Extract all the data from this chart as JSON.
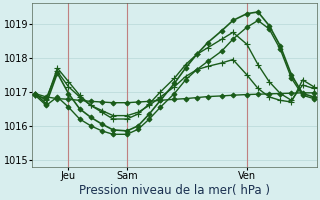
{
  "background_color": "#d8eeee",
  "grid_color": "#b8d8d8",
  "line_color": "#1a5c1a",
  "marker_color": "#1a5c1a",
  "title": "Pression niveau de la mer( hPa )",
  "ylim": [
    1014.8,
    1019.6
  ],
  "yticks": [
    1015,
    1016,
    1017,
    1018,
    1019
  ],
  "xtick_positions": [
    0.12,
    0.33,
    0.76
  ],
  "xtick_labels": [
    "Jeu",
    "Sam",
    "Ven"
  ],
  "vlines": [
    0.12,
    0.33,
    0.76
  ],
  "vline_color": "#c08080",
  "series": [
    {
      "x": [
        0.0,
        0.04,
        0.08,
        0.12,
        0.16,
        0.2,
        0.24,
        0.28,
        0.33,
        0.37,
        0.41,
        0.45,
        0.5,
        0.54,
        0.58,
        0.62,
        0.67,
        0.71,
        0.76,
        0.8,
        0.84,
        0.88,
        0.92,
        0.96,
        1.0
      ],
      "y": [
        1016.95,
        1016.85,
        1016.8,
        1016.78,
        1016.75,
        1016.72,
        1016.7,
        1016.68,
        1016.68,
        1016.7,
        1016.72,
        1016.75,
        1016.78,
        1016.8,
        1016.83,
        1016.86,
        1016.88,
        1016.9,
        1016.92,
        1016.93,
        1016.94,
        1016.95,
        1016.96,
        1016.97,
        1016.97
      ],
      "marker": "D",
      "ms": 2.5,
      "lw": 1.0
    },
    {
      "x": [
        0.0,
        0.04,
        0.08,
        0.12,
        0.16,
        0.2,
        0.24,
        0.28,
        0.33,
        0.37,
        0.41,
        0.45,
        0.5,
        0.54,
        0.58,
        0.62,
        0.67,
        0.71,
        0.76,
        0.8,
        0.84,
        0.88,
        0.92,
        0.96,
        1.0
      ],
      "y": [
        1016.9,
        1016.8,
        1017.6,
        1017.15,
        1016.85,
        1016.6,
        1016.45,
        1016.3,
        1016.3,
        1016.4,
        1016.6,
        1016.85,
        1017.15,
        1017.45,
        1017.65,
        1017.75,
        1017.85,
        1017.95,
        1017.5,
        1017.1,
        1016.85,
        1016.75,
        1016.7,
        1017.35,
        1017.15
      ],
      "marker": "+",
      "ms": 4.0,
      "lw": 1.0
    },
    {
      "x": [
        0.0,
        0.04,
        0.08,
        0.12,
        0.16,
        0.2,
        0.24,
        0.28,
        0.33,
        0.37,
        0.41,
        0.45,
        0.5,
        0.54,
        0.58,
        0.62,
        0.67,
        0.71,
        0.76,
        0.8,
        0.84,
        0.88,
        0.92,
        0.96,
        1.0
      ],
      "y": [
        1016.95,
        1016.75,
        1017.7,
        1017.3,
        1016.9,
        1016.6,
        1016.4,
        1016.2,
        1016.2,
        1016.35,
        1016.65,
        1017.0,
        1017.4,
        1017.8,
        1018.1,
        1018.3,
        1018.55,
        1018.75,
        1018.4,
        1017.8,
        1017.3,
        1016.95,
        1016.75,
        1017.2,
        1017.1
      ],
      "marker": "+",
      "ms": 4.0,
      "lw": 1.0
    },
    {
      "x": [
        0.0,
        0.04,
        0.08,
        0.12,
        0.16,
        0.2,
        0.24,
        0.28,
        0.33,
        0.37,
        0.41,
        0.45,
        0.5,
        0.54,
        0.58,
        0.62,
        0.67,
        0.71,
        0.76,
        0.8,
        0.84,
        0.88,
        0.92,
        0.96,
        1.0
      ],
      "y": [
        1016.95,
        1016.65,
        1017.55,
        1016.95,
        1016.5,
        1016.25,
        1016.05,
        1015.88,
        1015.85,
        1016.0,
        1016.35,
        1016.75,
        1017.25,
        1017.7,
        1018.1,
        1018.45,
        1018.8,
        1019.1,
        1019.3,
        1019.35,
        1018.95,
        1018.35,
        1017.5,
        1016.95,
        1016.85
      ],
      "marker": "D",
      "ms": 2.5,
      "lw": 1.2
    },
    {
      "x": [
        0.0,
        0.04,
        0.08,
        0.12,
        0.16,
        0.2,
        0.24,
        0.28,
        0.33,
        0.37,
        0.41,
        0.45,
        0.5,
        0.54,
        0.58,
        0.62,
        0.67,
        0.71,
        0.76,
        0.8,
        0.84,
        0.88,
        0.92,
        0.96,
        1.0
      ],
      "y": [
        1016.9,
        1016.6,
        1016.85,
        1016.55,
        1016.2,
        1016.0,
        1015.85,
        1015.75,
        1015.75,
        1015.9,
        1016.2,
        1016.55,
        1016.95,
        1017.35,
        1017.65,
        1017.9,
        1018.2,
        1018.55,
        1018.9,
        1019.1,
        1018.85,
        1018.25,
        1017.4,
        1016.9,
        1016.8
      ],
      "marker": "D",
      "ms": 2.5,
      "lw": 1.0
    }
  ],
  "title_fontsize": 8.5,
  "tick_fontsize": 7
}
